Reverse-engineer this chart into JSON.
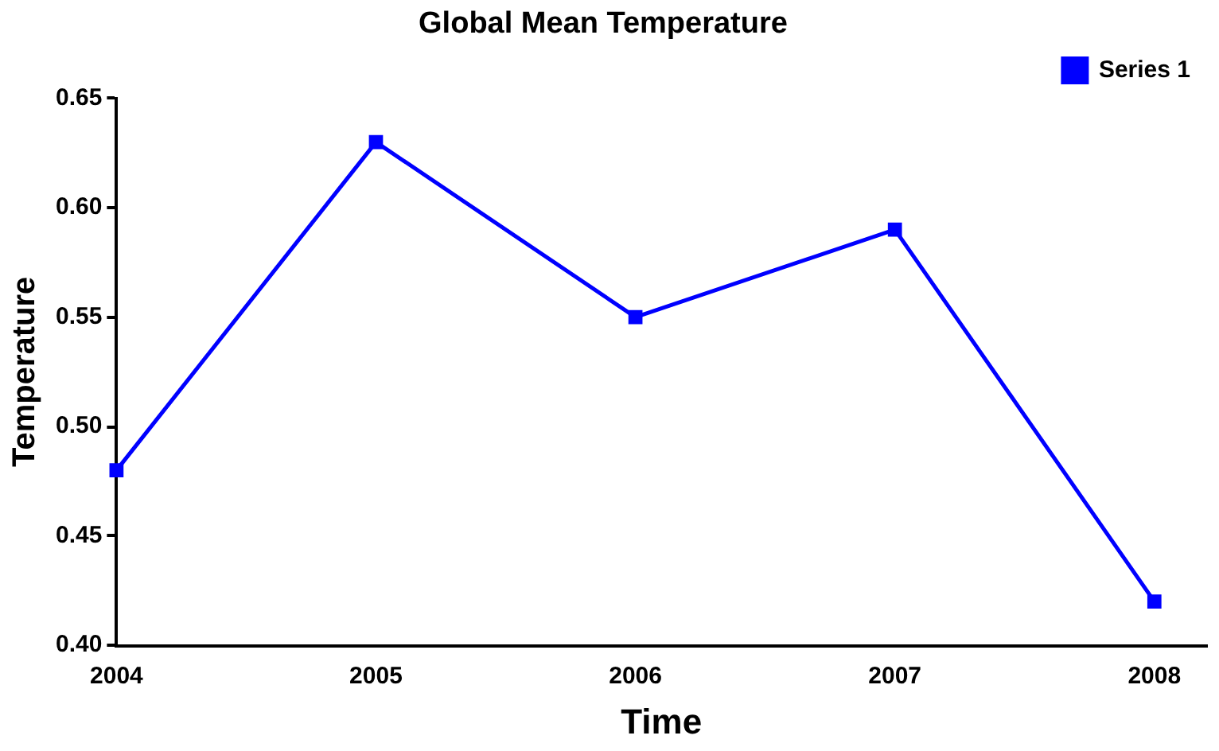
{
  "chart_data": {
    "type": "line",
    "title": "Global Mean Temperature",
    "xlabel": "Time",
    "ylabel": "Temperature",
    "x": [
      2004,
      2005,
      2006,
      2007,
      2008
    ],
    "series": [
      {
        "name": "Series 1",
        "color": "#0000ff",
        "values": [
          0.48,
          0.63,
          0.55,
          0.59,
          0.42
        ]
      }
    ],
    "xlim": [
      2004,
      2008.2
    ],
    "xticks": [
      2004,
      2005,
      2006,
      2007,
      2008
    ],
    "ylim": [
      0.4,
      0.65
    ],
    "yticks": [
      {
        "value": 0.4,
        "label": "0.40"
      },
      {
        "value": 0.45,
        "label": "0.45"
      },
      {
        "value": 0.5,
        "label": "0.50"
      },
      {
        "value": 0.55,
        "label": "0.55"
      },
      {
        "value": 0.6,
        "label": "0.60"
      },
      {
        "value": 0.65,
        "label": "0.65"
      }
    ],
    "grid": false,
    "legend": "top right",
    "marker": "square",
    "line_style": "solid"
  }
}
